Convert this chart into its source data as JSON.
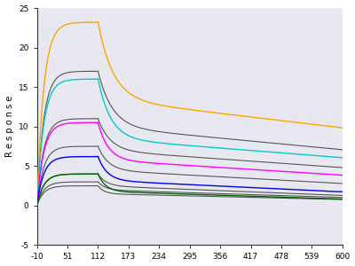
{
  "ylabel": "R e s p o n s e",
  "xlim": [
    -10,
    600
  ],
  "ylim": [
    -5,
    25
  ],
  "xticks": [
    -10,
    51,
    112,
    173,
    234,
    295,
    356,
    417,
    478,
    539,
    600
  ],
  "yticks": [
    -5,
    0,
    5,
    10,
    15,
    20,
    25
  ],
  "assoc_start": -10,
  "assoc_end": 112,
  "dissoc_end": 600,
  "background": "#ffffff",
  "plot_background": "#e8e8f0",
  "colored_curves": [
    {
      "color": "#FFA500",
      "peak": 23.2,
      "y0": 13.5,
      "tau1": 30,
      "slope": -0.0075
    },
    {
      "color": "#00CCCC",
      "peak": 16.0,
      "y0": 8.5,
      "tau1": 25,
      "slope": -0.005
    },
    {
      "color": "#FF00FF",
      "peak": 10.5,
      "y0": 5.8,
      "tau1": 20,
      "slope": -0.004
    },
    {
      "color": "#0000EE",
      "peak": 6.2,
      "y0": 3.2,
      "tau1": 18,
      "slope": -0.003
    },
    {
      "color": "#006400",
      "peak": 4.0,
      "y0": 1.8,
      "tau1": 15,
      "slope": -0.002
    }
  ],
  "gray_curves": [
    {
      "peak": 17.0,
      "y0": 10.0,
      "tau1": 28,
      "slope": -0.006
    },
    {
      "peak": 11.0,
      "y0": 7.0,
      "tau1": 24,
      "slope": -0.0045
    },
    {
      "peak": 7.5,
      "y0": 4.5,
      "tau1": 20,
      "slope": -0.0035
    },
    {
      "peak": 4.0,
      "y0": 2.5,
      "tau1": 16,
      "slope": -0.0025
    },
    {
      "peak": 3.0,
      "y0": 2.0,
      "tau1": 14,
      "slope": -0.002
    },
    {
      "peak": 2.5,
      "y0": 1.5,
      "tau1": 12,
      "slope": -0.0015
    }
  ],
  "gray_color": "#555555"
}
